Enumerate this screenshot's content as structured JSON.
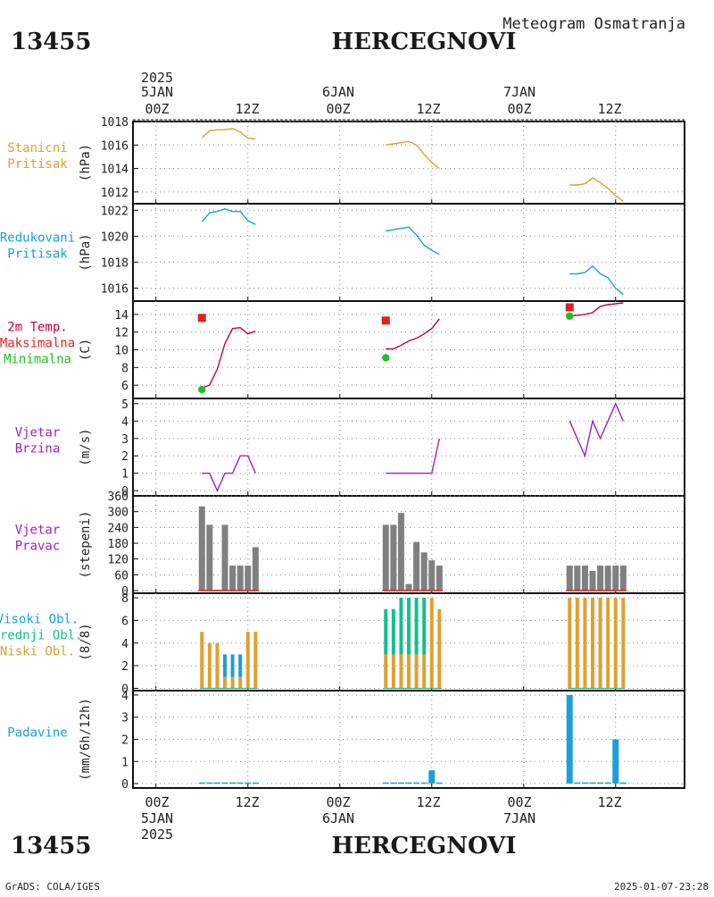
{
  "header": {
    "station_id": "13455",
    "station_name": "HERCEGNOVI",
    "chart_title": "Meteogram Osmatranja"
  },
  "footer": {
    "station_id": "13455",
    "station_name": "HERCEGNOVI",
    "credit": "GrADS: COLA/IGES",
    "timestamp": "2025-01-07-23:28"
  },
  "time_axis": {
    "year": "2025",
    "day_labels": [
      "5JAN",
      "6JAN",
      "7JAN"
    ],
    "hour_labels": [
      "00Z",
      "12Z",
      "00Z",
      "12Z",
      "00Z",
      "12Z"
    ],
    "tick_hours": [
      0,
      12,
      24,
      36,
      48,
      60
    ],
    "range_hours": [
      -3,
      69
    ]
  },
  "chart_data": [
    {
      "type": "line",
      "label_lines": [
        "Stanicni",
        "Pritisak"
      ],
      "label_colors": [
        "#e0a030",
        "#e0a030"
      ],
      "ylabel": "(hPa)",
      "ylim": [
        1011,
        1018
      ],
      "yticks": [
        1012,
        1014,
        1016,
        1018
      ],
      "series": [
        {
          "color": "#e0a030",
          "segments": [
            {
              "x": [
                6,
                7,
                8,
                9,
                10,
                11,
                12,
                13
              ],
              "y": [
                1016.6,
                1017.2,
                1017.3,
                1017.3,
                1017.4,
                1017.1,
                1016.6,
                1016.5
              ]
            },
            {
              "x": [
                30,
                31,
                32,
                33,
                34,
                35,
                36,
                37
              ],
              "y": [
                1016.0,
                1016.1,
                1016.2,
                1016.3,
                1016.0,
                1015.2,
                1014.5,
                1014.0
              ]
            },
            {
              "x": [
                54,
                55,
                56,
                57,
                58,
                59,
                60,
                61
              ],
              "y": [
                1012.6,
                1012.6,
                1012.7,
                1013.2,
                1012.8,
                1012.3,
                1011.7,
                1011.2
              ]
            }
          ]
        }
      ]
    },
    {
      "type": "line",
      "label_lines": [
        "Redukovani",
        "Pritisak"
      ],
      "label_colors": [
        "#1ba0d8",
        "#1ba0d8"
      ],
      "ylabel": "(hPa)",
      "ylim": [
        1015,
        1022.5
      ],
      "yticks": [
        1016,
        1018,
        1020,
        1022
      ],
      "series": [
        {
          "color": "#1ba0d8",
          "segments": [
            {
              "x": [
                6,
                7,
                8,
                9,
                10,
                11,
                12,
                13
              ],
              "y": [
                1021.1,
                1021.8,
                1021.9,
                1022.1,
                1021.9,
                1021.9,
                1021.2,
                1020.9
              ]
            },
            {
              "x": [
                30,
                31,
                32,
                33,
                34,
                35,
                36,
                37
              ],
              "y": [
                1020.4,
                1020.5,
                1020.6,
                1020.7,
                1020.1,
                1019.3,
                1018.9,
                1018.6
              ]
            },
            {
              "x": [
                54,
                55,
                56,
                57,
                58,
                59,
                60,
                61
              ],
              "y": [
                1017.1,
                1017.1,
                1017.2,
                1017.7,
                1017.1,
                1016.8,
                1016.0,
                1015.5
              ]
            }
          ]
        }
      ]
    },
    {
      "type": "line",
      "label_lines": [
        "2m Temp.",
        "Maksimalna",
        "Minimalna"
      ],
      "label_colors": [
        "#c8004a",
        "#e02020",
        "#20c020"
      ],
      "ylabel": "(C)",
      "ylim": [
        4.5,
        15.5
      ],
      "yticks": [
        6,
        8,
        10,
        12,
        14
      ],
      "series": [
        {
          "color": "#c0004a",
          "segments": [
            {
              "x": [
                6,
                7,
                8,
                9,
                10,
                11,
                12,
                13
              ],
              "y": [
                5.7,
                6.0,
                7.8,
                10.7,
                12.4,
                12.5,
                11.8,
                12.1
              ]
            },
            {
              "x": [
                30,
                31,
                32,
                33,
                34,
                35,
                36,
                37
              ],
              "y": [
                10.1,
                10.1,
                10.5,
                11.0,
                11.3,
                11.8,
                12.4,
                13.5
              ]
            },
            {
              "x": [
                54,
                55,
                56,
                57,
                58,
                59,
                60,
                61
              ],
              "y": [
                13.8,
                13.9,
                14.0,
                14.2,
                14.9,
                15.1,
                15.2,
                15.3
              ]
            }
          ]
        }
      ],
      "markers": [
        {
          "shape": "square",
          "color": "#e02020",
          "x": [
            6,
            30,
            54
          ],
          "y": [
            13.6,
            13.3,
            14.8
          ]
        },
        {
          "shape": "circle",
          "color": "#20c020",
          "x": [
            6,
            30,
            54
          ],
          "y": [
            5.5,
            9.1,
            13.8
          ]
        }
      ]
    },
    {
      "type": "line",
      "label_lines": [
        "Vjetar",
        "Brzina"
      ],
      "label_colors": [
        "#a020c0",
        "#a020c0"
      ],
      "ylabel": "(m/s)",
      "ylim": [
        -0.3,
        5.3
      ],
      "yticks": [
        0,
        1,
        2,
        3,
        4,
        5
      ],
      "series": [
        {
          "color": "#a020c0",
          "segments": [
            {
              "x": [
                6,
                7,
                8,
                9,
                10,
                11,
                12,
                13
              ],
              "y": [
                1,
                1,
                0,
                1,
                1,
                2,
                2,
                1
              ]
            },
            {
              "x": [
                30,
                31,
                32,
                33,
                34,
                35,
                36,
                37
              ],
              "y": [
                1,
                1,
                1,
                1,
                1,
                1,
                1,
                3
              ]
            },
            {
              "x": [
                54,
                55,
                56,
                57,
                58,
                59,
                60,
                61
              ],
              "y": [
                4,
                3,
                2,
                4,
                3,
                4,
                5,
                4
              ]
            }
          ]
        }
      ]
    },
    {
      "type": "bar",
      "label_lines": [
        "Vjetar",
        "Pravac"
      ],
      "label_colors": [
        "#a020c0",
        "#a020c0"
      ],
      "ylabel": "(stepeni)",
      "ylim": [
        -10,
        360
      ],
      "yticks": [
        0,
        60,
        120,
        180,
        240,
        300,
        360
      ],
      "bar_color": "#808080",
      "baseline_color": "#d02020",
      "x": [
        6,
        7,
        8,
        9,
        10,
        11,
        12,
        13,
        30,
        31,
        32,
        33,
        34,
        35,
        36,
        37,
        54,
        55,
        56,
        57,
        58,
        59,
        60,
        61
      ],
      "values": [
        320,
        250,
        0,
        250,
        95,
        95,
        95,
        165,
        250,
        250,
        295,
        25,
        185,
        145,
        115,
        95,
        95,
        95,
        95,
        75,
        95,
        95,
        95,
        95
      ]
    },
    {
      "type": "bar",
      "label_lines": [
        "Visoki Obl.",
        "Srednji Obl.",
        "Niski Obl."
      ],
      "label_colors": [
        "#1ba0d8",
        "#10c090",
        "#e0a030"
      ],
      "ylabel": "(8/8)",
      "ylim": [
        -0.2,
        8.4
      ],
      "yticks": [
        0,
        2,
        4,
        6,
        8
      ],
      "x": [
        6,
        7,
        8,
        9,
        10,
        11,
        12,
        13,
        30,
        31,
        32,
        33,
        34,
        35,
        36,
        37,
        54,
        55,
        56,
        57,
        58,
        59,
        60,
        61
      ],
      "series": [
        {
          "name": "Visoki Obl.",
          "color": "#1ba0d8",
          "values": [
            0,
            0,
            0,
            2,
            2,
            2,
            0,
            0,
            0,
            0,
            0,
            0,
            0,
            0,
            0,
            0,
            0,
            0,
            0,
            0,
            0,
            0,
            0,
            0
          ]
        },
        {
          "name": "Srednji Obl.",
          "color": "#10c090",
          "values": [
            0,
            0,
            0,
            0,
            0,
            0,
            0,
            0,
            4,
            4,
            5,
            5,
            5,
            5,
            0,
            0,
            0,
            0,
            0,
            0,
            0,
            0,
            0,
            0
          ]
        },
        {
          "name": "Niski Obl.",
          "color": "#e0a030",
          "values": [
            5,
            4,
            4,
            1,
            1,
            1,
            5,
            5,
            3,
            3,
            3,
            3,
            3,
            3,
            8,
            7,
            8,
            8,
            8,
            8,
            8,
            8,
            8,
            8
          ]
        }
      ]
    },
    {
      "type": "bar",
      "label_lines": [
        "Padavine"
      ],
      "label_colors": [
        "#1ba0d8"
      ],
      "ylabel": "(mm/6h/12h)",
      "ylim": [
        -0.2,
        4.2
      ],
      "yticks": [
        0,
        1,
        2,
        3,
        4
      ],
      "bar_color": "#1ba0d8",
      "x": [
        6,
        7,
        8,
        9,
        10,
        11,
        12,
        13,
        30,
        31,
        32,
        33,
        34,
        35,
        36,
        37,
        54,
        55,
        56,
        57,
        58,
        59,
        60,
        61
      ],
      "values": [
        0.05,
        0.05,
        0.05,
        0.05,
        0.05,
        0.05,
        0.05,
        0.05,
        0.05,
        0.05,
        0.05,
        0.05,
        0.05,
        0.05,
        0.6,
        0.05,
        4.0,
        0.05,
        0.05,
        0.05,
        0.05,
        0.05,
        2.0,
        0.05
      ]
    }
  ]
}
